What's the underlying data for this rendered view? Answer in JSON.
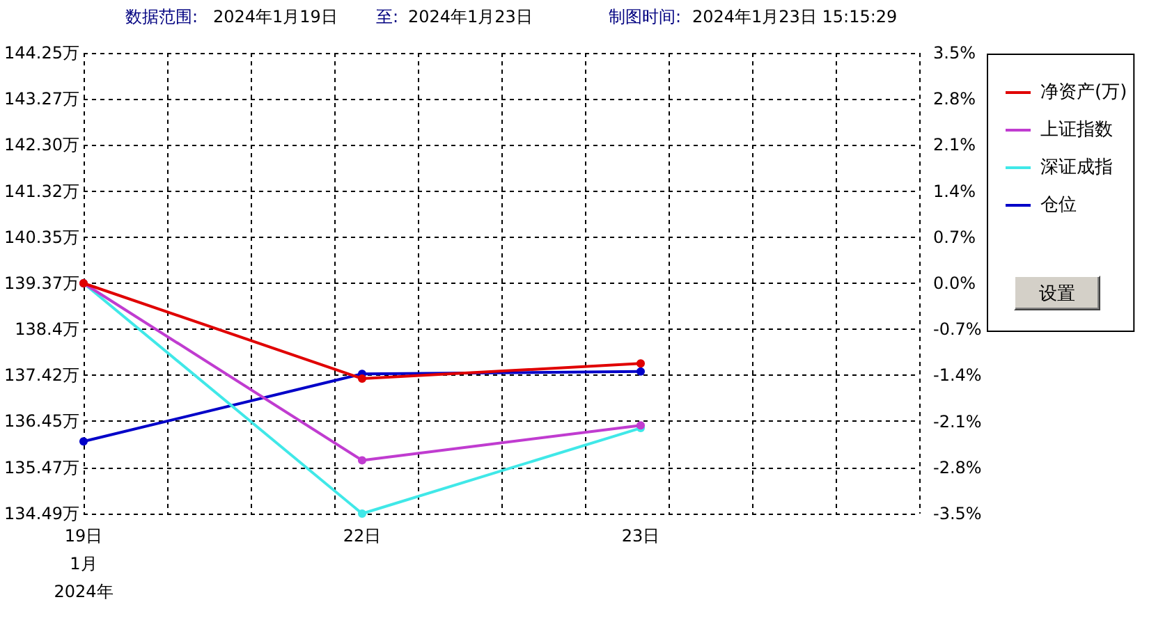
{
  "chart_data": {
    "type": "line",
    "annotations": [
      "数据范围:",
      "2024年1月19日",
      "至:",
      "2024年1月23日",
      "制图时间:",
      "2024年1月23日 15:15:29",
      "设置"
    ],
    "categories": [
      "19日\n1月\n2024年",
      "22日",
      "23日",
      null
    ],
    "series": [
      {
        "name": "净资产(万)",
        "color": "#e00000",
        "values": [
          139.37,
          137.35,
          137.67,
          null
        ]
      },
      {
        "name": "上证指数",
        "color": "#c03cd0",
        "axis": "y2",
        "values": [
          0,
          -2.69,
          -2.16,
          null
        ]
      },
      {
        "name": "深证成指",
        "color": "#40e8e8",
        "axis": "y2",
        "values": [
          0,
          -3.5,
          -2.2,
          null
        ]
      },
      {
        "name": "仓位",
        "color": "#0000c8",
        "values": [
          136.02,
          137.45,
          137.5,
          null
        ]
      }
    ],
    "ylim": [
      134.49,
      144.25
    ],
    "yticks": [
      {
        "value": 134.49,
        "label": "134.49万"
      },
      {
        "value": 135.47,
        "label": "135.47万"
      },
      {
        "value": 136.45,
        "label": "136.45万"
      },
      {
        "value": 137.42,
        "label": "137.42万"
      },
      {
        "value": 138.4,
        "label": "138.4万"
      },
      {
        "value": 139.37,
        "label": "139.37万"
      },
      {
        "value": 140.35,
        "label": "140.35万"
      },
      {
        "value": 141.32,
        "label": "141.32万"
      },
      {
        "value": 142.3,
        "label": "142.30万"
      },
      {
        "value": 143.27,
        "label": "143.27万"
      },
      {
        "value": 144.25,
        "label": "144.25万"
      }
    ],
    "y2lim": [
      -3.5,
      3.5
    ],
    "y2ticks": [
      {
        "value": -3.5,
        "label": "-3.5%"
      },
      {
        "value": -2.8,
        "label": "-2.8%"
      },
      {
        "value": -2.1,
        "label": "-2.1%"
      },
      {
        "value": -1.4,
        "label": "-1.4%"
      },
      {
        "value": -0.7,
        "label": "-0.7%"
      },
      {
        "value": 0,
        "label": "0.0%"
      },
      {
        "value": 0.7,
        "label": "0.7%"
      },
      {
        "value": 1.4,
        "label": "1.4%"
      },
      {
        "value": 2.1,
        "label": "2.1%"
      },
      {
        "value": 2.8,
        "label": "2.8%"
      },
      {
        "value": 3.5,
        "label": "3.5%"
      }
    ],
    "grid": true,
    "legend": "right",
    "marker": "circle",
    "line_style": "solid"
  }
}
